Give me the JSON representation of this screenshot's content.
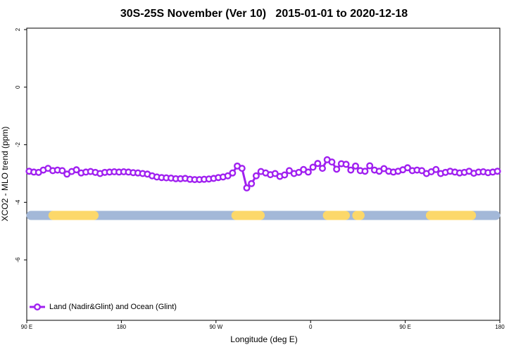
{
  "chart_data": {
    "type": "line",
    "title": "30S-25S November (Ver 10)   2015-01-01 to 2020-12-18",
    "xlabel": "Longitude (deg E)",
    "ylabel": "XCO2 - MLO trend (ppm)",
    "xlim": [
      90,
      540
    ],
    "xticks": [
      {
        "value": 90,
        "label": "90 E"
      },
      {
        "value": 180,
        "label": "180"
      },
      {
        "value": 270,
        "label": "90 W"
      },
      {
        "value": 360,
        "label": "0"
      },
      {
        "value": 450,
        "label": "90 E"
      },
      {
        "value": 540,
        "label": "180"
      }
    ],
    "ylim": [
      -8.1,
      2.05
    ],
    "yticks": [
      2,
      0,
      -2,
      -4,
      -6
    ],
    "legend": "bottom-left",
    "land_color": "#fcd86a",
    "ocean_color": "#a3b8d8",
    "land_segments": [
      [
        115,
        154
      ],
      [
        289,
        312
      ],
      [
        376,
        393
      ],
      [
        404,
        407
      ],
      [
        474,
        513
      ]
    ],
    "series": [
      {
        "name": "Land (Nadir&Glint) and Ocean (Glint)",
        "color": "#a020f0",
        "x": [
          92.25,
          96.75,
          101.25,
          105.75,
          110.25,
          114.75,
          119.25,
          123.75,
          128.25,
          132.75,
          137.25,
          141.75,
          146.25,
          150.75,
          155.25,
          159.75,
          164.25,
          168.75,
          173.25,
          177.75,
          182.25,
          186.75,
          191.25,
          195.75,
          200.25,
          204.75,
          209.25,
          213.75,
          218.25,
          222.75,
          227.25,
          231.75,
          236.25,
          240.75,
          245.25,
          249.75,
          254.25,
          258.75,
          263.25,
          267.75,
          272.25,
          276.75,
          281.25,
          285.75,
          290.25,
          294.75,
          299.25,
          303.75,
          308.25,
          312.75,
          317.25,
          321.75,
          326.25,
          330.75,
          335.25,
          339.75,
          344.25,
          348.75,
          353.25,
          357.75,
          362.25,
          366.75,
          371.25,
          375.75,
          380.25,
          384.75,
          389.25,
          393.75,
          398.25,
          402.75,
          407.25,
          411.75,
          416.25,
          420.75,
          425.25,
          429.75,
          434.25,
          438.75,
          443.25,
          447.75,
          452.25,
          456.75,
          461.25,
          465.75,
          470.25,
          474.75,
          479.25,
          483.75,
          488.25,
          492.75,
          497.25,
          501.75,
          506.25,
          510.75,
          515.25,
          519.75,
          524.25,
          528.75,
          533.25,
          537.75
        ],
        "values": [
          -2.92,
          -2.95,
          -2.96,
          -2.88,
          -2.82,
          -2.9,
          -2.88,
          -2.9,
          -3.02,
          -2.93,
          -2.87,
          -2.98,
          -2.95,
          -2.93,
          -2.96,
          -3.0,
          -2.96,
          -2.95,
          -2.94,
          -2.95,
          -2.94,
          -2.95,
          -2.97,
          -2.98,
          -3.0,
          -3.02,
          -3.08,
          -3.12,
          -3.14,
          -3.15,
          -3.16,
          -3.18,
          -3.18,
          -3.17,
          -3.2,
          -3.21,
          -3.21,
          -3.2,
          -3.19,
          -3.17,
          -3.14,
          -3.12,
          -3.08,
          -2.98,
          -2.74,
          -2.82,
          -3.5,
          -3.35,
          -3.08,
          -2.93,
          -2.98,
          -3.04,
          -3.0,
          -3.1,
          -3.05,
          -2.9,
          -3.0,
          -2.96,
          -2.86,
          -2.95,
          -2.78,
          -2.65,
          -2.82,
          -2.52,
          -2.6,
          -2.85,
          -2.66,
          -2.68,
          -2.88,
          -2.74,
          -2.9,
          -2.92,
          -2.73,
          -2.88,
          -2.92,
          -2.83,
          -2.92,
          -2.95,
          -2.92,
          -2.87,
          -2.8,
          -2.9,
          -2.88,
          -2.9,
          -3.0,
          -2.94,
          -2.86,
          -3.0,
          -2.96,
          -2.92,
          -2.95,
          -2.98,
          -2.96,
          -2.92,
          -2.99,
          -2.95,
          -2.94,
          -2.97,
          -2.95,
          -2.92
        ]
      }
    ]
  }
}
